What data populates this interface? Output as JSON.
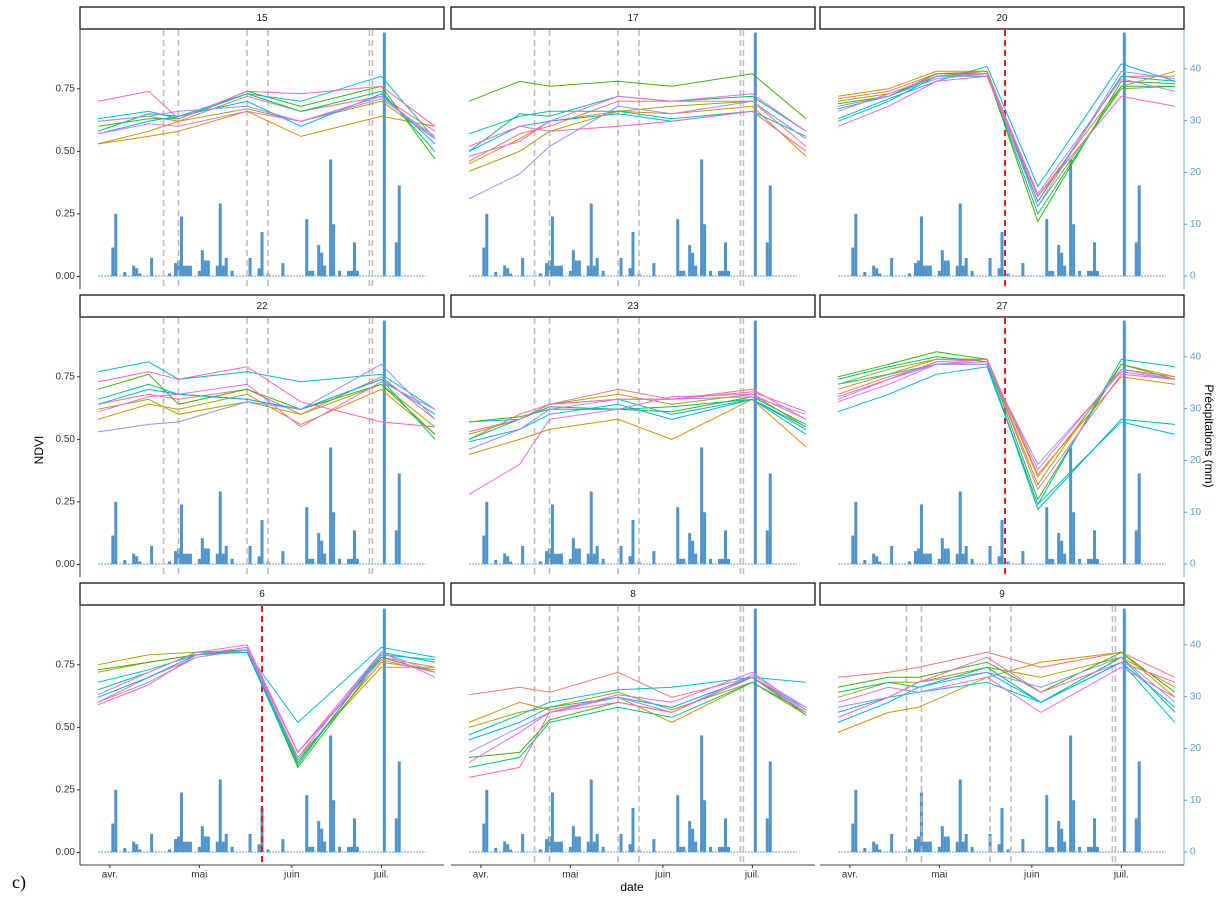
{
  "chart_data": {
    "type": "faceted-line",
    "x_label": "date",
    "y_label": "NDVI",
    "y2_label": "Précipitations (mm)",
    "caption": "c)",
    "xlim": [
      81,
      203
    ],
    "xticks": [
      {
        "value": 91,
        "label": "avr."
      },
      {
        "value": 121,
        "label": "mai"
      },
      {
        "value": 152,
        "label": "juin"
      },
      {
        "value": 182,
        "label": "juil."
      }
    ],
    "ylim": [
      -0.05,
      0.985
    ],
    "yticks": [
      {
        "value": 0,
        "label": "0.00"
      },
      0.25,
      {
        "value": 0.5,
        "label": "0.50"
      },
      0.75
    ],
    "y2lim": [
      -2.5,
      47.5
    ],
    "y2ticks": [
      0,
      10,
      20,
      30,
      40
    ],
    "line_colors": [
      "#F8766D",
      "#D89000",
      "#A3A500",
      "#39B600",
      "#00BF7D",
      "#00BFC4",
      "#00B0F6",
      "#9590FF",
      "#E76BF3",
      "#FF62BC"
    ],
    "precipitation": {
      "color": "#4F94CD",
      "x": [
        92,
        93,
        96,
        99,
        100,
        101,
        105,
        111,
        113,
        114,
        115,
        116,
        117,
        118,
        121,
        122,
        123,
        124,
        127,
        128,
        129,
        130,
        132,
        138,
        141,
        142,
        144,
        149,
        157,
        158,
        159,
        161,
        162,
        163,
        165,
        166,
        168,
        171,
        172,
        173,
        174,
        183,
        187,
        188
      ],
      "values": [
        5.5,
        12,
        0.8,
        2,
        1.5,
        0.5,
        3.5,
        0.5,
        2.5,
        3,
        11.5,
        2,
        2,
        2,
        1,
        5,
        3,
        3,
        2,
        14,
        2,
        3.5,
        1,
        3.5,
        1.5,
        8.5,
        0.5,
        2.5,
        11,
        1,
        1,
        6,
        4.5,
        2,
        22.5,
        10,
        1,
        1,
        1,
        6.5,
        1,
        47,
        6.5,
        17.5
      ]
    },
    "facets": [
      {
        "title": "15",
        "x": [
          87,
          104,
          114,
          137,
          155,
          182,
          200
        ],
        "vlines": {
          "color": "#BEBEBE",
          "x": [
            109,
            114,
            137,
            144,
            178,
            179
          ]
        },
        "series": [
          [
            0.62,
            0.64,
            0.62,
            0.72,
            0.66,
            0.72,
            0.58
          ],
          [
            0.53,
            0.56,
            0.58,
            0.66,
            0.56,
            0.64,
            0.6
          ],
          [
            0.53,
            0.58,
            0.62,
            0.67,
            0.62,
            0.7,
            0.55
          ],
          [
            0.6,
            0.63,
            0.63,
            0.74,
            0.68,
            0.76,
            0.47
          ],
          [
            0.58,
            0.65,
            0.64,
            0.73,
            0.66,
            0.74,
            0.5
          ],
          [
            0.63,
            0.66,
            0.63,
            0.73,
            0.7,
            0.8,
            0.55
          ],
          [
            0.57,
            0.62,
            0.64,
            0.7,
            0.6,
            0.73,
            0.53
          ],
          [
            0.62,
            0.64,
            0.66,
            0.68,
            0.62,
            0.71,
            0.56
          ],
          [
            0.57,
            0.61,
            0.6,
            0.66,
            0.62,
            0.72,
            0.55
          ],
          [
            0.7,
            0.74,
            0.63,
            0.74,
            0.73,
            0.76,
            0.6
          ]
        ]
      },
      {
        "title": "17",
        "x": [
          87,
          104,
          114,
          137,
          155,
          182,
          200
        ],
        "vlines": {
          "color": "#BEBEBE",
          "x": [
            109,
            114,
            137,
            144,
            178,
            179
          ]
        },
        "series": [
          [
            0.46,
            0.57,
            0.6,
            0.7,
            0.7,
            0.7,
            0.52
          ],
          [
            0.45,
            0.55,
            0.62,
            0.66,
            0.65,
            0.68,
            0.48
          ],
          [
            0.42,
            0.5,
            0.58,
            0.66,
            0.68,
            0.7,
            0.55
          ],
          [
            0.7,
            0.78,
            0.76,
            0.78,
            0.76,
            0.81,
            0.63
          ],
          [
            0.5,
            0.65,
            0.64,
            0.72,
            0.7,
            0.72,
            0.58
          ],
          [
            0.57,
            0.64,
            0.66,
            0.66,
            0.63,
            0.66,
            0.56
          ],
          [
            0.5,
            0.6,
            0.62,
            0.65,
            0.62,
            0.66,
            0.5
          ],
          [
            0.31,
            0.41,
            0.52,
            0.68,
            0.65,
            0.7,
            0.55
          ],
          [
            0.48,
            0.54,
            0.62,
            0.72,
            0.7,
            0.73,
            0.58
          ],
          [
            0.52,
            0.6,
            0.58,
            0.6,
            0.62,
            0.66,
            0.5
          ]
        ]
      },
      {
        "title": "20",
        "x": [
          87,
          104,
          120,
          137,
          154,
          182,
          200
        ],
        "vlines": {
          "color": "#E41A1C",
          "x": [
            143
          ]
        },
        "series": [
          [
            0.71,
            0.74,
            0.81,
            0.82,
            0.3,
            0.8,
            0.8
          ],
          [
            0.72,
            0.75,
            0.82,
            0.82,
            0.32,
            0.76,
            0.82
          ],
          [
            0.7,
            0.73,
            0.8,
            0.82,
            0.28,
            0.75,
            0.76
          ],
          [
            0.69,
            0.72,
            0.81,
            0.81,
            0.22,
            0.78,
            0.77
          ],
          [
            0.67,
            0.72,
            0.8,
            0.81,
            0.25,
            0.76,
            0.76
          ],
          [
            0.62,
            0.7,
            0.8,
            0.8,
            0.3,
            0.8,
            0.78
          ],
          [
            0.63,
            0.71,
            0.78,
            0.84,
            0.36,
            0.85,
            0.78
          ],
          [
            0.68,
            0.72,
            0.79,
            0.81,
            0.28,
            0.82,
            0.79
          ],
          [
            0.66,
            0.73,
            0.8,
            0.81,
            0.33,
            0.79,
            0.74
          ],
          [
            0.6,
            0.68,
            0.78,
            0.8,
            0.32,
            0.72,
            0.68
          ]
        ]
      },
      {
        "title": "22",
        "x": [
          87,
          104,
          114,
          137,
          155,
          182,
          200
        ],
        "vlines": {
          "color": "#BEBEBE",
          "x": [
            109,
            114,
            137,
            144,
            178,
            179
          ]
        },
        "series": [
          [
            0.64,
            0.68,
            0.66,
            0.7,
            0.6,
            0.75,
            0.58
          ],
          [
            0.58,
            0.64,
            0.62,
            0.68,
            0.56,
            0.7,
            0.52
          ],
          [
            0.62,
            0.66,
            0.6,
            0.65,
            0.6,
            0.72,
            0.55
          ],
          [
            0.7,
            0.76,
            0.64,
            0.7,
            0.62,
            0.72,
            0.52
          ],
          [
            0.66,
            0.72,
            0.68,
            0.66,
            0.62,
            0.74,
            0.5
          ],
          [
            0.77,
            0.81,
            0.74,
            0.77,
            0.73,
            0.76,
            0.62
          ],
          [
            0.64,
            0.7,
            0.68,
            0.66,
            0.62,
            0.74,
            0.6
          ],
          [
            0.53,
            0.56,
            0.57,
            0.65,
            0.62,
            0.8,
            0.58
          ],
          [
            0.61,
            0.67,
            0.68,
            0.72,
            0.55,
            0.73,
            0.62
          ],
          [
            0.73,
            0.77,
            0.74,
            0.79,
            0.65,
            0.57,
            0.55
          ]
        ]
      },
      {
        "title": "23",
        "x": [
          87,
          104,
          114,
          137,
          155,
          182,
          200
        ],
        "vlines": {
          "color": "#BEBEBE",
          "x": [
            109,
            114,
            137,
            144,
            178,
            179
          ]
        },
        "series": [
          [
            0.5,
            0.6,
            0.64,
            0.7,
            0.66,
            0.7,
            0.58
          ],
          [
            0.44,
            0.5,
            0.54,
            0.58,
            0.5,
            0.66,
            0.47
          ],
          [
            0.52,
            0.58,
            0.64,
            0.68,
            0.64,
            0.68,
            0.55
          ],
          [
            0.57,
            0.59,
            0.62,
            0.62,
            0.61,
            0.67,
            0.56
          ],
          [
            0.5,
            0.58,
            0.63,
            0.62,
            0.63,
            0.66,
            0.54
          ],
          [
            0.57,
            0.58,
            0.64,
            0.66,
            0.6,
            0.66,
            0.52
          ],
          [
            0.49,
            0.54,
            0.6,
            0.64,
            0.58,
            0.66,
            0.55
          ],
          [
            0.46,
            0.54,
            0.62,
            0.66,
            0.66,
            0.67,
            0.6
          ],
          [
            0.28,
            0.4,
            0.58,
            0.62,
            0.67,
            0.68,
            0.58
          ],
          [
            0.53,
            0.58,
            0.64,
            0.66,
            0.66,
            0.69,
            0.61
          ]
        ]
      },
      {
        "title": "27",
        "x": [
          87,
          104,
          120,
          137,
          154,
          182,
          200
        ],
        "vlines": {
          "color": "#E41A1C",
          "x": [
            143
          ]
        },
        "series": [
          [
            0.68,
            0.75,
            0.8,
            0.82,
            0.35,
            0.78,
            0.75
          ],
          [
            0.7,
            0.76,
            0.82,
            0.82,
            0.36,
            0.75,
            0.72
          ],
          [
            0.72,
            0.78,
            0.82,
            0.82,
            0.32,
            0.8,
            0.75
          ],
          [
            0.75,
            0.8,
            0.85,
            0.82,
            0.26,
            0.8,
            0.74
          ],
          [
            0.74,
            0.79,
            0.83,
            0.81,
            0.22,
            0.58,
            0.56
          ],
          [
            0.72,
            0.76,
            0.8,
            0.8,
            0.24,
            0.82,
            0.79
          ],
          [
            0.61,
            0.68,
            0.76,
            0.79,
            0.24,
            0.57,
            0.52
          ],
          [
            0.66,
            0.74,
            0.8,
            0.8,
            0.4,
            0.77,
            0.74
          ],
          [
            0.65,
            0.72,
            0.8,
            0.81,
            0.38,
            0.78,
            0.74
          ],
          [
            0.67,
            0.74,
            0.81,
            0.82,
            0.3,
            0.76,
            0.74
          ]
        ]
      },
      {
        "title": "6",
        "x": [
          87,
          104,
          120,
          137,
          154,
          182,
          200
        ],
        "vlines": {
          "color": "#E41A1C",
          "x": [
            142
          ]
        },
        "series": [
          [
            0.6,
            0.7,
            0.78,
            0.81,
            0.4,
            0.78,
            0.74
          ],
          [
            0.72,
            0.76,
            0.79,
            0.8,
            0.38,
            0.74,
            0.74
          ],
          [
            0.75,
            0.79,
            0.8,
            0.81,
            0.37,
            0.76,
            0.73
          ],
          [
            0.73,
            0.76,
            0.79,
            0.81,
            0.34,
            0.78,
            0.72
          ],
          [
            0.65,
            0.72,
            0.8,
            0.8,
            0.35,
            0.8,
            0.76
          ],
          [
            0.68,
            0.73,
            0.79,
            0.8,
            0.52,
            0.82,
            0.78
          ],
          [
            0.62,
            0.7,
            0.79,
            0.81,
            0.36,
            0.79,
            0.77
          ],
          [
            0.6,
            0.68,
            0.78,
            0.81,
            0.38,
            0.8,
            0.72
          ],
          [
            0.63,
            0.72,
            0.8,
            0.83,
            0.4,
            0.8,
            0.7
          ],
          [
            0.59,
            0.67,
            0.79,
            0.82,
            0.4,
            0.77,
            0.72
          ]
        ]
      },
      {
        "title": "8",
        "x": [
          87,
          104,
          114,
          137,
          155,
          182,
          200
        ],
        "vlines": {
          "color": "#BEBEBE",
          "x": [
            109,
            114,
            137,
            144,
            178,
            179
          ]
        },
        "series": [
          [
            0.63,
            0.66,
            0.64,
            0.72,
            0.62,
            0.7,
            0.58
          ],
          [
            0.52,
            0.6,
            0.57,
            0.62,
            0.52,
            0.68,
            0.55
          ],
          [
            0.5,
            0.56,
            0.58,
            0.64,
            0.57,
            0.68,
            0.56
          ],
          [
            0.38,
            0.4,
            0.53,
            0.6,
            0.56,
            0.7,
            0.55
          ],
          [
            0.34,
            0.38,
            0.52,
            0.58,
            0.54,
            0.68,
            0.56
          ],
          [
            0.47,
            0.55,
            0.6,
            0.65,
            0.66,
            0.7,
            0.68
          ],
          [
            0.45,
            0.52,
            0.58,
            0.62,
            0.58,
            0.7,
            0.57
          ],
          [
            0.4,
            0.5,
            0.56,
            0.62,
            0.56,
            0.71,
            0.58
          ],
          [
            0.36,
            0.48,
            0.56,
            0.63,
            0.6,
            0.72,
            0.57
          ],
          [
            0.3,
            0.34,
            0.56,
            0.6,
            0.56,
            0.7,
            0.56
          ]
        ]
      },
      {
        "title": "9",
        "x": [
          87,
          104,
          114,
          137,
          155,
          182,
          200
        ],
        "vlines": {
          "color": "#BEBEBE",
          "x": [
            110,
            115,
            138,
            145,
            179,
            180
          ]
        },
        "series": [
          [
            0.7,
            0.72,
            0.74,
            0.8,
            0.74,
            0.8,
            0.7
          ],
          [
            0.48,
            0.56,
            0.58,
            0.7,
            0.76,
            0.8,
            0.62
          ],
          [
            0.62,
            0.68,
            0.68,
            0.74,
            0.7,
            0.78,
            0.66
          ],
          [
            0.66,
            0.7,
            0.7,
            0.76,
            0.64,
            0.8,
            0.64
          ],
          [
            0.64,
            0.68,
            0.66,
            0.74,
            0.6,
            0.78,
            0.56
          ],
          [
            0.56,
            0.62,
            0.64,
            0.68,
            0.6,
            0.76,
            0.52
          ],
          [
            0.52,
            0.6,
            0.66,
            0.72,
            0.6,
            0.76,
            0.58
          ],
          [
            0.58,
            0.62,
            0.68,
            0.72,
            0.66,
            0.78,
            0.6
          ],
          [
            0.6,
            0.66,
            0.64,
            0.7,
            0.56,
            0.74,
            0.62
          ],
          [
            0.54,
            0.62,
            0.68,
            0.78,
            0.64,
            0.76,
            0.68
          ]
        ]
      }
    ]
  }
}
